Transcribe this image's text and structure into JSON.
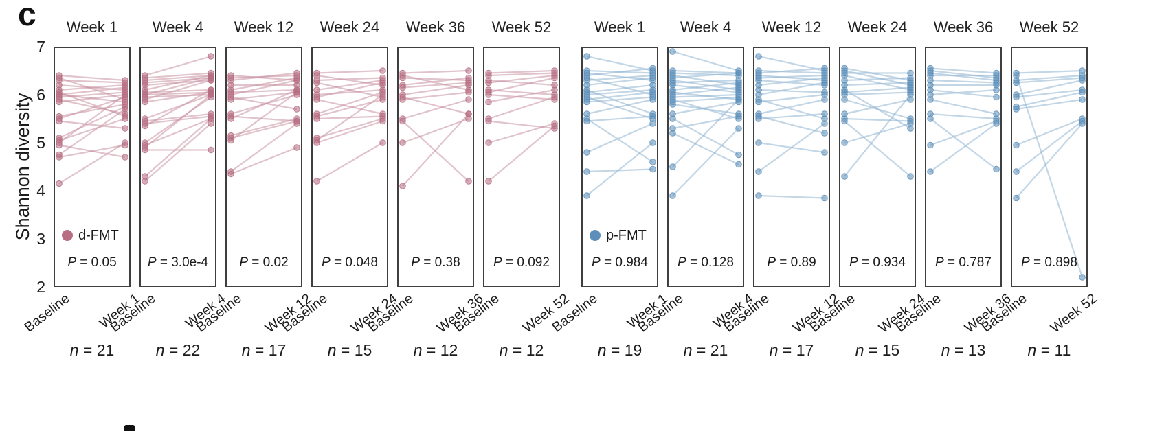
{
  "figure": {
    "panel_label": "c",
    "ylabel": "Shannon diversity",
    "ylim": [
      2,
      7
    ],
    "yticks": [
      7,
      6,
      5,
      4,
      3,
      2
    ],
    "colors": {
      "dfmt_dot": "#b76e83",
      "dfmt_line": "#c992a2",
      "pfmt_dot": "#5d8fba",
      "pfmt_line": "#8fb5d2",
      "frame": "#3f3f3f",
      "text": "#1c1c1c"
    },
    "legend": [
      {
        "label": "d-FMT",
        "color": "#b76e83"
      },
      {
        "label": "p-FMT",
        "color": "#5d8fba"
      }
    ]
  },
  "chart_data": [
    {
      "type": "line",
      "title": "Week 1",
      "group": "d-FMT",
      "legend": true,
      "legend_label": "d-FMT",
      "p_label": "P = 0.05",
      "n_label": "n = 21",
      "x_categories": [
        "Baseline",
        "Week 1"
      ],
      "pairs": [
        [
          6.4,
          6.3
        ],
        [
          6.35,
          5.9
        ],
        [
          6.3,
          6.25
        ],
        [
          6.2,
          6.1
        ],
        [
          6.1,
          6.2
        ],
        [
          6.05,
          5.55
        ],
        [
          6.0,
          6.15
        ],
        [
          6.0,
          5.85
        ],
        [
          5.95,
          6.05
        ],
        [
          5.9,
          5.6
        ],
        [
          5.85,
          6.0
        ],
        [
          5.55,
          5.8
        ],
        [
          5.5,
          5.95
        ],
        [
          5.45,
          5.3
        ],
        [
          5.1,
          5.75
        ],
        [
          5.05,
          5.5
        ],
        [
          5.0,
          6.0
        ],
        [
          4.95,
          4.7
        ],
        [
          4.75,
          5.7
        ],
        [
          4.7,
          4.95
        ],
        [
          4.15,
          5.0
        ]
      ]
    },
    {
      "type": "line",
      "title": "Week 4",
      "group": "d-FMT",
      "legend": false,
      "legend_label": "",
      "p_label": "P = 3.0e-4",
      "n_label": "n = 22",
      "x_categories": [
        "Baseline",
        "Week 4"
      ],
      "pairs": [
        [
          6.4,
          6.8
        ],
        [
          6.35,
          6.45
        ],
        [
          6.3,
          6.4
        ],
        [
          6.25,
          6.35
        ],
        [
          6.2,
          6.3
        ],
        [
          6.1,
          6.4
        ],
        [
          6.05,
          6.1
        ],
        [
          6.0,
          6.05
        ],
        [
          6.0,
          6.35
        ],
        [
          5.95,
          6.0
        ],
        [
          5.9,
          6.3
        ],
        [
          5.85,
          6.05
        ],
        [
          5.5,
          6.0
        ],
        [
          5.45,
          5.6
        ],
        [
          5.4,
          5.55
        ],
        [
          5.35,
          6.1
        ],
        [
          5.0,
          5.95
        ],
        [
          4.95,
          5.5
        ],
        [
          4.9,
          6.0
        ],
        [
          4.85,
          4.85
        ],
        [
          4.3,
          5.5
        ],
        [
          4.2,
          5.4
        ]
      ]
    },
    {
      "type": "line",
      "title": "Week 12",
      "group": "d-FMT",
      "legend": false,
      "legend_label": "",
      "p_label": "P = 0.02",
      "n_label": "n = 17",
      "x_categories": [
        "Baseline",
        "Week 12"
      ],
      "pairs": [
        [
          6.4,
          6.3
        ],
        [
          6.35,
          6.4
        ],
        [
          6.3,
          6.45
        ],
        [
          6.2,
          6.2
        ],
        [
          6.1,
          6.35
        ],
        [
          6.05,
          6.1
        ],
        [
          6.0,
          6.3
        ],
        [
          5.95,
          5.7
        ],
        [
          5.9,
          6.05
        ],
        [
          5.6,
          6.0
        ],
        [
          5.55,
          5.45
        ],
        [
          5.5,
          6.1
        ],
        [
          5.15,
          5.5
        ],
        [
          5.1,
          5.45
        ],
        [
          5.05,
          6.05
        ],
        [
          4.4,
          5.4
        ],
        [
          4.35,
          4.9
        ]
      ]
    },
    {
      "type": "line",
      "title": "Week 24",
      "group": "d-FMT",
      "legend": false,
      "legend_label": "",
      "p_label": "P = 0.048",
      "n_label": "n = 15",
      "x_categories": [
        "Baseline",
        "Week 24"
      ],
      "pairs": [
        [
          6.45,
          6.5
        ],
        [
          6.4,
          6.2
        ],
        [
          6.3,
          6.35
        ],
        [
          6.25,
          5.95
        ],
        [
          6.1,
          6.3
        ],
        [
          6.0,
          6.1
        ],
        [
          5.95,
          6.25
        ],
        [
          5.9,
          5.6
        ],
        [
          5.6,
          6.05
        ],
        [
          5.55,
          5.9
        ],
        [
          5.5,
          5.55
        ],
        [
          5.1,
          5.5
        ],
        [
          5.05,
          6.0
        ],
        [
          5.0,
          5.45
        ],
        [
          4.2,
          5.0
        ]
      ]
    },
    {
      "type": "line",
      "title": "Week 36",
      "group": "d-FMT",
      "legend": false,
      "legend_label": "",
      "p_label": "P = 0.38",
      "n_label": "n = 12",
      "x_categories": [
        "Baseline",
        "Week 36"
      ],
      "pairs": [
        [
          6.45,
          6.5
        ],
        [
          6.4,
          6.1
        ],
        [
          6.35,
          6.3
        ],
        [
          6.2,
          6.35
        ],
        [
          6.15,
          6.25
        ],
        [
          6.0,
          6.2
        ],
        [
          5.95,
          5.6
        ],
        [
          5.9,
          6.05
        ],
        [
          5.5,
          5.9
        ],
        [
          5.45,
          4.2
        ],
        [
          5.0,
          5.5
        ],
        [
          4.1,
          5.6
        ]
      ]
    },
    {
      "type": "line",
      "title": "Week 52",
      "group": "d-FMT",
      "legend": false,
      "legend_label": "",
      "p_label": "P = 0.092",
      "n_label": "n = 12",
      "x_categories": [
        "Baseline",
        "Week 52"
      ],
      "pairs": [
        [
          6.45,
          6.5
        ],
        [
          6.4,
          6.45
        ],
        [
          6.3,
          6.2
        ],
        [
          6.25,
          6.4
        ],
        [
          6.1,
          6.0
        ],
        [
          6.05,
          6.35
        ],
        [
          6.0,
          5.9
        ],
        [
          5.85,
          6.1
        ],
        [
          5.5,
          5.95
        ],
        [
          5.45,
          5.3
        ],
        [
          5.0,
          5.4
        ],
        [
          4.2,
          5.35
        ]
      ]
    },
    {
      "type": "line",
      "title": "Week 1",
      "group": "p-FMT",
      "legend": true,
      "legend_label": "p-FMT",
      "p_label": "P = 0.984",
      "n_label": "n = 19",
      "x_categories": [
        "Baseline",
        "Week 1"
      ],
      "pairs": [
        [
          6.8,
          6.5
        ],
        [
          6.5,
          6.45
        ],
        [
          6.45,
          6.3
        ],
        [
          6.4,
          6.55
        ],
        [
          6.35,
          6.0
        ],
        [
          6.3,
          6.4
        ],
        [
          6.2,
          6.35
        ],
        [
          6.1,
          5.6
        ],
        [
          6.05,
          6.2
        ],
        [
          6.0,
          6.1
        ],
        [
          5.95,
          5.5
        ],
        [
          5.9,
          6.05
        ],
        [
          5.85,
          5.95
        ],
        [
          5.6,
          5.9
        ],
        [
          5.5,
          4.6
        ],
        [
          5.45,
          5.55
        ],
        [
          4.8,
          5.4
        ],
        [
          4.4,
          4.45
        ],
        [
          3.9,
          5.0
        ]
      ]
    },
    {
      "type": "line",
      "title": "Week 4",
      "group": "p-FMT",
      "legend": false,
      "legend_label": "",
      "p_label": "P = 0.128",
      "n_label": "n = 21",
      "x_categories": [
        "Baseline",
        "Week 4"
      ],
      "pairs": [
        [
          6.9,
          6.5
        ],
        [
          6.5,
          6.45
        ],
        [
          6.45,
          6.4
        ],
        [
          6.4,
          6.2
        ],
        [
          6.35,
          6.45
        ],
        [
          6.3,
          6.1
        ],
        [
          6.25,
          6.3
        ],
        [
          6.2,
          6.05
        ],
        [
          6.1,
          6.25
        ],
        [
          6.05,
          5.9
        ],
        [
          6.0,
          6.15
        ],
        [
          5.95,
          6.0
        ],
        [
          5.9,
          5.5
        ],
        [
          5.85,
          5.95
        ],
        [
          5.8,
          5.6
        ],
        [
          5.6,
          5.85
        ],
        [
          5.5,
          4.75
        ],
        [
          5.3,
          5.55
        ],
        [
          5.2,
          4.55
        ],
        [
          4.5,
          5.9
        ],
        [
          3.9,
          5.3
        ]
      ]
    },
    {
      "type": "line",
      "title": "Week 12",
      "group": "p-FMT",
      "legend": false,
      "legend_label": "",
      "p_label": "P = 0.89",
      "n_label": "n = 17",
      "x_categories": [
        "Baseline",
        "Week 12"
      ],
      "pairs": [
        [
          6.8,
          6.5
        ],
        [
          6.5,
          6.45
        ],
        [
          6.45,
          6.55
        ],
        [
          6.4,
          6.3
        ],
        [
          6.35,
          6.4
        ],
        [
          6.3,
          6.2
        ],
        [
          6.2,
          6.35
        ],
        [
          6.1,
          6.05
        ],
        [
          6.0,
          6.25
        ],
        [
          5.9,
          5.5
        ],
        [
          5.85,
          6.0
        ],
        [
          5.6,
          5.9
        ],
        [
          5.55,
          5.2
        ],
        [
          5.5,
          5.6
        ],
        [
          5.0,
          4.8
        ],
        [
          4.4,
          5.4
        ],
        [
          3.9,
          3.85
        ]
      ]
    },
    {
      "type": "line",
      "title": "Week 24",
      "group": "p-FMT",
      "legend": false,
      "legend_label": "",
      "p_label": "P = 0.934",
      "n_label": "n = 15",
      "x_categories": [
        "Baseline",
        "Week 24"
      ],
      "pairs": [
        [
          6.55,
          6.3
        ],
        [
          6.5,
          6.2
        ],
        [
          6.45,
          6.45
        ],
        [
          6.4,
          6.1
        ],
        [
          6.3,
          6.35
        ],
        [
          6.2,
          6.25
        ],
        [
          6.1,
          5.3
        ],
        [
          6.05,
          6.15
        ],
        [
          6.0,
          6.05
        ],
        [
          5.9,
          5.5
        ],
        [
          5.6,
          5.9
        ],
        [
          5.5,
          5.45
        ],
        [
          5.45,
          4.3
        ],
        [
          5.0,
          5.4
        ],
        [
          4.3,
          6.0
        ]
      ]
    },
    {
      "type": "line",
      "title": "Week 36",
      "group": "p-FMT",
      "legend": false,
      "legend_label": "",
      "p_label": "P = 0.787",
      "n_label": "n = 13",
      "x_categories": [
        "Baseline",
        "Week 36"
      ],
      "pairs": [
        [
          6.55,
          6.45
        ],
        [
          6.5,
          6.35
        ],
        [
          6.45,
          6.3
        ],
        [
          6.4,
          6.4
        ],
        [
          6.3,
          6.25
        ],
        [
          6.2,
          6.2
        ],
        [
          6.1,
          5.95
        ],
        [
          6.0,
          6.1
        ],
        [
          5.9,
          5.6
        ],
        [
          5.6,
          5.5
        ],
        [
          5.5,
          4.45
        ],
        [
          4.95,
          5.45
        ],
        [
          4.4,
          5.4
        ]
      ]
    },
    {
      "type": "line",
      "title": "Week 52",
      "group": "p-FMT",
      "legend": false,
      "legend_label": "",
      "p_label": "P = 0.898",
      "n_label": "n = 11",
      "x_categories": [
        "Baseline",
        "Week 52"
      ],
      "pairs": [
        [
          6.45,
          6.5
        ],
        [
          6.4,
          2.2
        ],
        [
          6.3,
          6.4
        ],
        [
          6.25,
          6.35
        ],
        [
          6.0,
          6.3
        ],
        [
          5.95,
          6.1
        ],
        [
          5.75,
          6.05
        ],
        [
          5.7,
          5.9
        ],
        [
          4.95,
          5.5
        ],
        [
          4.4,
          5.45
        ],
        [
          3.85,
          5.4
        ]
      ]
    }
  ]
}
